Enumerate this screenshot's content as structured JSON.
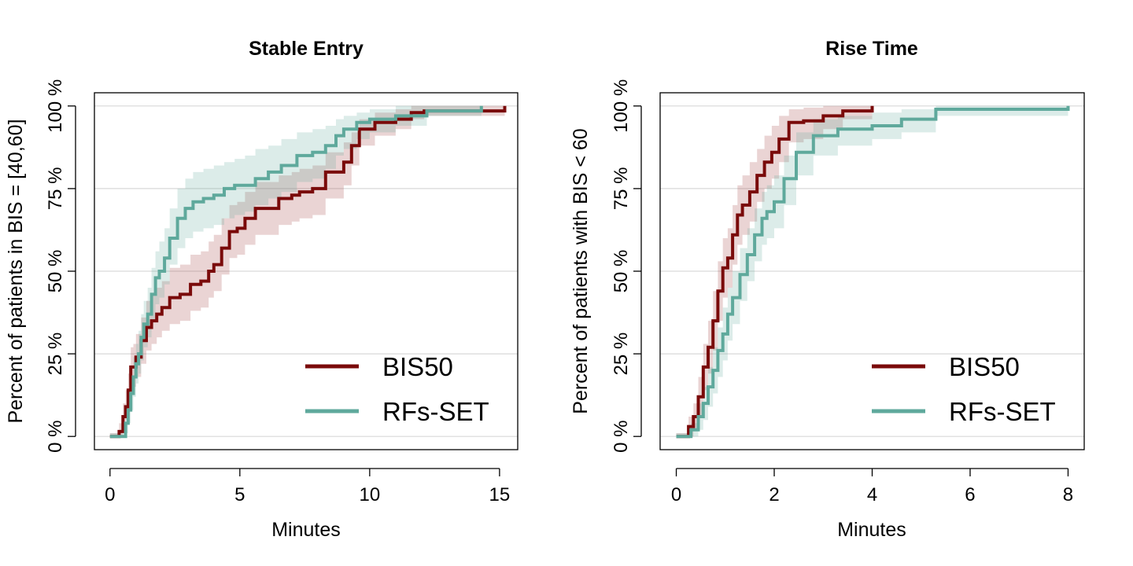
{
  "colors": {
    "BIS50": "#7a0a0a",
    "BIS50_band": "rgba(160, 60, 60, 0.22)",
    "RFs-SET": "#5fa99c",
    "RFs-SET_band": "rgba(95, 169, 156, 0.22)",
    "grid": "#d9d9d9"
  },
  "chart_data": [
    {
      "type": "line",
      "step": true,
      "title": "Stable Entry",
      "xlabel": "Minutes",
      "ylabel": "Percent of patients in BIS = [40,60]",
      "xlim": [
        -0.6,
        15.7
      ],
      "ylim": [
        -4,
        104
      ],
      "x_ticks": [
        0,
        5,
        10,
        15
      ],
      "x_tick_labels": [
        "0",
        "5",
        "10",
        "15"
      ],
      "y_ticks": [
        0,
        25,
        50,
        75,
        100
      ],
      "y_tick_labels": [
        "0 %",
        "25 %",
        "50 %",
        "75 %",
        "100 %"
      ],
      "grid": "horizontal",
      "legend_position": "bottom-right",
      "series": [
        {
          "name": "BIS50",
          "x": [
            0,
            0.35,
            0.5,
            0.6,
            0.7,
            0.8,
            0.9,
            1.0,
            1.2,
            1.4,
            1.6,
            1.8,
            2.0,
            2.3,
            2.7,
            3.1,
            3.5,
            3.8,
            4.0,
            4.3,
            4.6,
            4.9,
            5.2,
            5.6,
            6.0,
            6.5,
            7.0,
            7.3,
            7.8,
            8.3,
            9.0,
            9.3,
            9.6,
            10.2,
            11.0,
            11.6,
            12.1,
            12.3,
            15.2
          ],
          "y": [
            0,
            1.5,
            6,
            9,
            14,
            21,
            21,
            24,
            29,
            33,
            35,
            37,
            39,
            42,
            43,
            46,
            47,
            50,
            52,
            57,
            62,
            63,
            66,
            69,
            69,
            72,
            73,
            74,
            75,
            80,
            83,
            88,
            93,
            95,
            96,
            98,
            98.5,
            98.5,
            100
          ],
          "band_upper": [
            1,
            4,
            10,
            14,
            19,
            27,
            28,
            31,
            36,
            41,
            43,
            45,
            47,
            51,
            52,
            55,
            56,
            59,
            61,
            66,
            70,
            71,
            74,
            77,
            77,
            79,
            80,
            81,
            82,
            86,
            89,
            92,
            96,
            98,
            99,
            100,
            100,
            100,
            100
          ],
          "band_lower": [
            0,
            0,
            3,
            5,
            9,
            15,
            15,
            18,
            22,
            26,
            28,
            30,
            32,
            34,
            35,
            38,
            39,
            42,
            44,
            49,
            54,
            55,
            58,
            61,
            61,
            64,
            65,
            66,
            67,
            72,
            76,
            82,
            88,
            91,
            93,
            96,
            97,
            97,
            100
          ]
        },
        {
          "name": "RFs-SET",
          "x": [
            0,
            0.6,
            0.7,
            0.8,
            0.9,
            1.0,
            1.1,
            1.2,
            1.3,
            1.45,
            1.6,
            1.75,
            1.9,
            2.1,
            2.3,
            2.6,
            2.9,
            3.2,
            3.6,
            4.0,
            4.4,
            4.8,
            5.2,
            5.6,
            6.1,
            6.6,
            7.2,
            7.8,
            8.3,
            8.7,
            9.0,
            9.5,
            10.0,
            11.0,
            12.2,
            14.3
          ],
          "y": [
            0,
            4,
            8,
            13,
            18,
            22,
            25,
            30,
            34,
            37,
            43,
            48,
            50,
            54,
            60,
            66,
            69,
            71,
            72,
            73,
            75,
            76,
            76,
            78,
            80,
            82,
            85,
            86,
            88,
            91,
            93,
            95,
            96,
            97,
            98.5,
            100
          ],
          "band_upper": [
            1,
            7,
            12,
            18,
            24,
            28,
            32,
            37,
            41,
            45,
            51,
            56,
            59,
            63,
            69,
            75,
            78,
            80,
            81,
            82,
            83,
            84,
            85,
            87,
            88,
            90,
            92,
            93,
            94,
            96,
            97,
            98,
            99,
            100,
            100,
            100
          ],
          "band_lower": [
            0,
            1,
            4,
            8,
            12,
            16,
            19,
            23,
            27,
            30,
            35,
            40,
            42,
            46,
            52,
            57,
            60,
            62,
            63,
            64,
            66,
            67,
            68,
            70,
            72,
            74,
            77,
            78,
            81,
            85,
            87,
            90,
            92,
            94,
            97,
            100
          ]
        }
      ]
    },
    {
      "type": "line",
      "step": true,
      "title": "Rise Time",
      "xlabel": "Minutes",
      "ylabel": "Percent of patients with BIS < 60",
      "xlim": [
        -0.33,
        8.33
      ],
      "ylim": [
        -4,
        104
      ],
      "x_ticks": [
        0,
        2,
        4,
        6,
        8
      ],
      "x_tick_labels": [
        "0",
        "2",
        "4",
        "6",
        "8"
      ],
      "y_ticks": [
        0,
        25,
        50,
        75,
        100
      ],
      "y_tick_labels": [
        "0 %",
        "25 %",
        "50 %",
        "75 %",
        "100 %"
      ],
      "grid": "horizontal",
      "legend_position": "bottom-right",
      "series": [
        {
          "name": "BIS50",
          "x": [
            0,
            0.25,
            0.35,
            0.45,
            0.55,
            0.65,
            0.75,
            0.85,
            0.95,
            1.05,
            1.15,
            1.25,
            1.35,
            1.5,
            1.65,
            1.8,
            1.95,
            2.1,
            2.3,
            2.6,
            3.0,
            3.4,
            4.0
          ],
          "y": [
            0,
            3,
            6,
            12,
            21,
            27,
            35,
            44,
            51,
            54,
            61,
            67,
            70,
            74,
            79,
            83,
            86,
            90,
            95,
            95.5,
            97,
            98.5,
            100
          ],
          "band_upper": [
            1,
            6,
            10,
            18,
            28,
            35,
            44,
            53,
            60,
            63,
            70,
            76,
            79,
            83,
            87,
            91,
            94,
            97,
            99,
            99.5,
            100,
            100,
            100
          ],
          "band_lower": [
            0,
            0,
            2,
            6,
            14,
            19,
            26,
            35,
            42,
            45,
            52,
            58,
            61,
            65,
            71,
            75,
            78,
            83,
            89,
            90,
            93,
            96,
            100
          ]
        },
        {
          "name": "RFs-SET",
          "x": [
            0,
            0.3,
            0.45,
            0.55,
            0.65,
            0.75,
            0.85,
            0.95,
            1.05,
            1.15,
            1.3,
            1.45,
            1.6,
            1.75,
            1.85,
            2.0,
            2.2,
            2.45,
            2.8,
            3.3,
            4.0,
            4.6,
            5.3,
            8.0
          ],
          "y": [
            0,
            2,
            6,
            10,
            15,
            20,
            26,
            31,
            37,
            42,
            49,
            55,
            61,
            66,
            68,
            71,
            78,
            86,
            91,
            93,
            94,
            96,
            99,
            100
          ],
          "band_upper": [
            1,
            4,
            10,
            15,
            21,
            27,
            33,
            39,
            45,
            50,
            57,
            63,
            69,
            74,
            76,
            79,
            85,
            92,
            96,
            97,
            98,
            99,
            100,
            100
          ],
          "band_lower": [
            0,
            0,
            2,
            5,
            9,
            13,
            18,
            23,
            29,
            34,
            41,
            47,
            53,
            58,
            60,
            63,
            70,
            79,
            85,
            88,
            90,
            92,
            97,
            100
          ]
        }
      ]
    }
  ]
}
